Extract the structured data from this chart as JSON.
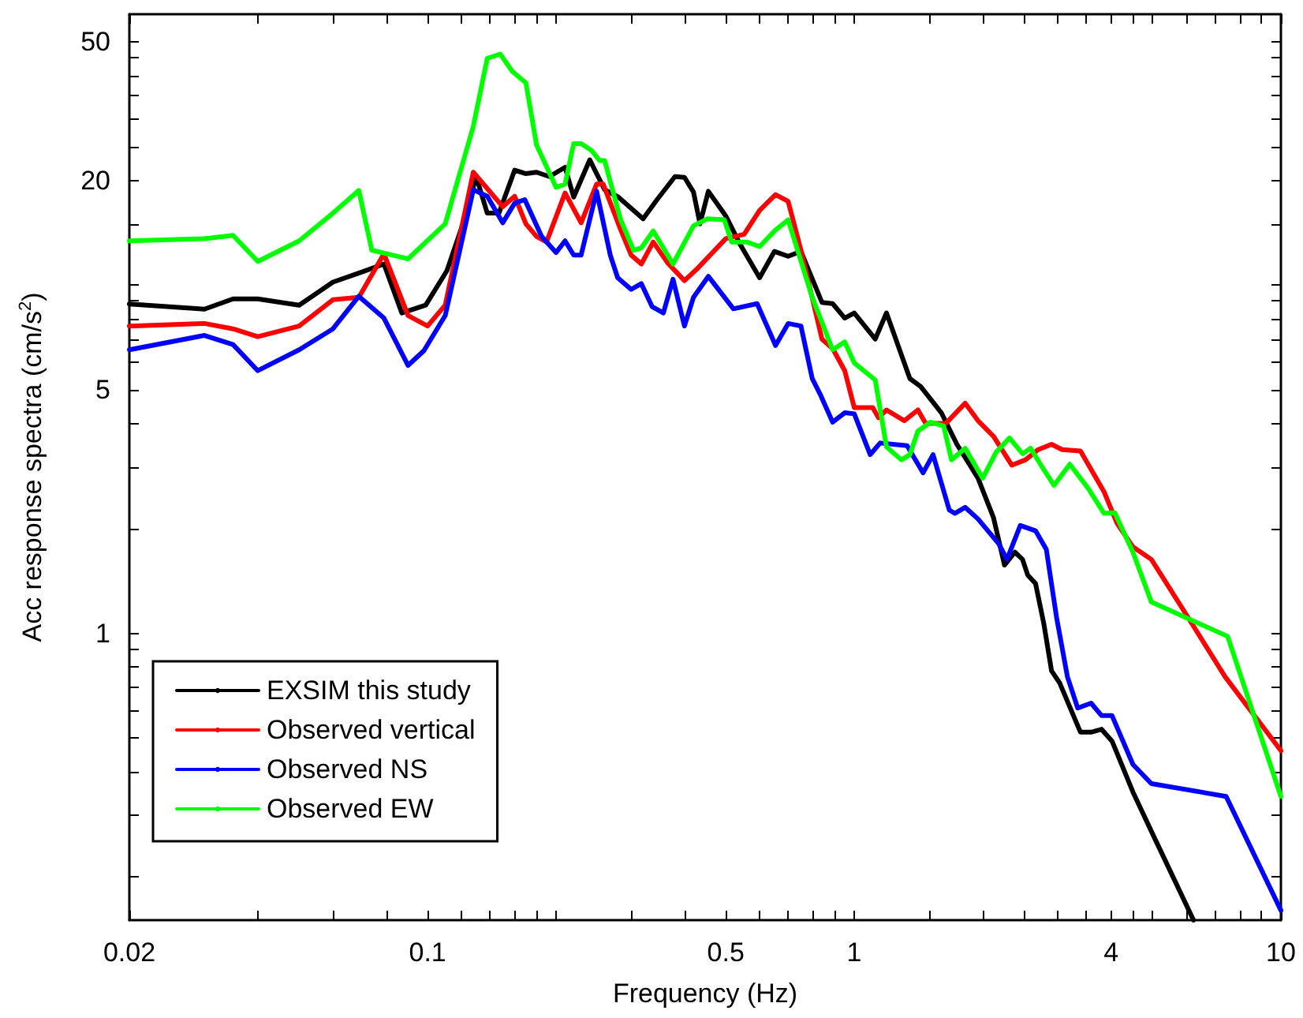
{
  "chart_data": {
    "type": "line",
    "xlabel": "Frequency (Hz)",
    "ylabel": "Acc response spectra (cm/s$^{2}$)",
    "log": "xy",
    "xlim": [
      0.02,
      10
    ],
    "ylim": [
      0.15,
      60
    ],
    "xticks": [
      0.02,
      {
        "value": 0.04,
        "label": null
      },
      {
        "value": 0.06,
        "label": null
      },
      {
        "value": 0.08,
        "label": null
      },
      0.1,
      {
        "value": 0.12,
        "label": null
      },
      {
        "value": 0.14,
        "label": null
      },
      {
        "value": 0.16,
        "label": null
      },
      {
        "value": 0.18,
        "label": null
      },
      {
        "value": 0.2,
        "label": null
      },
      {
        "value": 0.3,
        "label": null
      },
      {
        "value": 0.4,
        "label": null
      },
      0.5,
      {
        "value": 0.6,
        "label": null
      },
      {
        "value": 0.7,
        "label": null
      },
      {
        "value": 0.8,
        "label": null
      },
      {
        "value": 0.9,
        "label": null
      },
      1,
      {
        "value": 1.5,
        "label": null
      },
      {
        "value": 2,
        "label": null
      },
      {
        "value": 2.5,
        "label": null
      },
      {
        "value": 3,
        "label": null
      },
      {
        "value": 3.5,
        "label": null
      },
      4,
      {
        "value": 4.5,
        "label": null
      },
      {
        "value": 5,
        "label": null
      },
      {
        "value": 6,
        "label": null
      },
      {
        "value": 7,
        "label": null
      },
      {
        "value": 8,
        "label": null
      },
      {
        "value": 9,
        "label": null
      },
      10
    ],
    "yticks": [
      {
        "value": 0.2,
        "label": null
      },
      {
        "value": 0.3,
        "label": null
      },
      {
        "value": 0.4,
        "label": null
      },
      {
        "value": 0.5,
        "label": null
      },
      {
        "value": 0.6,
        "label": null
      },
      {
        "value": 0.7,
        "label": null
      },
      {
        "value": 0.8,
        "label": null
      },
      {
        "value": 0.9,
        "label": null
      },
      1,
      {
        "value": 2,
        "label": null
      },
      {
        "value": 3,
        "label": null
      },
      {
        "value": 4,
        "label": null
      },
      5,
      {
        "value": 6,
        "label": null
      },
      {
        "value": 7,
        "label": null
      },
      {
        "value": 8,
        "label": null
      },
      {
        "value": 9,
        "label": null
      },
      {
        "value": 10,
        "label": null
      },
      {
        "value": 15,
        "label": null
      },
      20,
      {
        "value": 25,
        "label": null
      },
      {
        "value": 30,
        "label": null
      },
      {
        "value": 35,
        "label": null
      },
      {
        "value": 40,
        "label": null
      },
      {
        "value": 45,
        "label": null
      },
      50
    ],
    "grid": false,
    "legend": "bottom left",
    "marker": "none",
    "line_style": "solid",
    "series": [
      {
        "name": "EXSIM this study",
        "color": "#000000",
        "x": [
          0.02,
          0.03,
          0.035,
          0.04,
          0.05,
          0.06,
          0.07,
          0.079,
          0.087,
          0.099,
          0.111,
          0.121,
          0.13,
          0.138,
          0.147,
          0.16,
          0.17,
          0.18,
          0.193,
          0.21,
          0.22,
          0.24,
          0.26,
          0.28,
          0.32,
          0.345,
          0.38,
          0.4,
          0.42,
          0.435,
          0.455,
          0.5,
          0.54,
          0.6,
          0.65,
          0.7,
          0.75,
          0.84,
          0.89,
          0.95,
          1.0,
          1.12,
          1.19,
          1.35,
          1.43,
          1.6,
          1.74,
          1.95,
          2.12,
          2.25,
          2.38,
          2.48,
          2.55,
          2.66,
          2.78,
          2.9,
          3.03,
          3.39,
          3.59,
          3.8,
          4.02,
          4.5,
          4.97,
          6.24
        ],
        "values": [
          8.83,
          8.53,
          9.13,
          9.13,
          8.76,
          10.2,
          10.9,
          11.5,
          8.32,
          8.76,
          11.0,
          15.0,
          20.5,
          16.1,
          16.1,
          21.4,
          20.9,
          21.1,
          20.5,
          21.8,
          17.9,
          22.9,
          18.8,
          17.9,
          15.5,
          17.6,
          20.5,
          20.4,
          18.5,
          15.0,
          18.6,
          15.8,
          13.1,
          10.5,
          12.5,
          12.1,
          12.5,
          8.92,
          8.85,
          8.04,
          8.32,
          7.0,
          8.32,
          5.39,
          5.12,
          4.3,
          3.49,
          2.79,
          2.15,
          1.57,
          1.71,
          1.63,
          1.47,
          1.39,
          1.07,
          0.78,
          0.72,
          0.52,
          0.52,
          0.53,
          0.49,
          0.35,
          0.27,
          0.15
        ]
      },
      {
        "name": "Observed vertical",
        "color": "#ff0000",
        "x": [
          0.02,
          0.03,
          0.035,
          0.04,
          0.05,
          0.06,
          0.069,
          0.079,
          0.09,
          0.1,
          0.11,
          0.128,
          0.15,
          0.16,
          0.17,
          0.18,
          0.19,
          0.21,
          0.229,
          0.249,
          0.258,
          0.283,
          0.3,
          0.317,
          0.338,
          0.365,
          0.4,
          0.427,
          0.5,
          0.552,
          0.6,
          0.654,
          0.7,
          0.75,
          0.84,
          0.89,
          0.95,
          1.0,
          1.105,
          1.14,
          1.19,
          1.31,
          1.41,
          1.47,
          1.64,
          1.82,
          1.95,
          2.12,
          2.34,
          2.52,
          2.7,
          2.9,
          3.07,
          3.39,
          3.85,
          4.13,
          4.5,
          4.97,
          6.06,
          7.4,
          10
        ],
        "values": [
          7.63,
          7.76,
          7.49,
          7.11,
          7.63,
          9.08,
          9.23,
          12.3,
          8.18,
          7.63,
          8.76,
          21.1,
          16.8,
          18.0,
          15.0,
          13.8,
          13.3,
          18.4,
          15.1,
          19.5,
          19.5,
          14.5,
          12.2,
          11.5,
          13.3,
          11.6,
          10.3,
          11.1,
          13.6,
          14.0,
          16.4,
          18.2,
          17.4,
          12.6,
          7.0,
          6.57,
          5.68,
          4.45,
          4.45,
          4.16,
          4.38,
          4.08,
          4.38,
          4.01,
          4.01,
          4.58,
          4.08,
          3.68,
          3.04,
          3.15,
          3.37,
          3.49,
          3.37,
          3.34,
          2.55,
          2.07,
          1.77,
          1.63,
          1.11,
          0.75,
          0.46
        ]
      },
      {
        "name": "Observed NS",
        "color": "#0000ff",
        "x": [
          0.02,
          0.03,
          0.035,
          0.04,
          0.05,
          0.06,
          0.069,
          0.079,
          0.09,
          0.098,
          0.11,
          0.128,
          0.138,
          0.15,
          0.16,
          0.169,
          0.185,
          0.2,
          0.21,
          0.22,
          0.229,
          0.249,
          0.268,
          0.279,
          0.3,
          0.317,
          0.336,
          0.357,
          0.376,
          0.4,
          0.42,
          0.455,
          0.521,
          0.592,
          0.654,
          0.7,
          0.75,
          0.797,
          0.832,
          0.89,
          0.95,
          1.0,
          1.09,
          1.15,
          1.33,
          1.45,
          1.53,
          1.67,
          1.72,
          1.82,
          1.95,
          2.18,
          2.28,
          2.45,
          2.66,
          2.82,
          2.98,
          3.16,
          3.34,
          3.59,
          3.8,
          4.02,
          4.5,
          4.97,
          7.44,
          10
        ],
        "values": [
          6.52,
          7.17,
          6.75,
          5.68,
          6.52,
          7.49,
          9.29,
          8.04,
          5.88,
          6.48,
          8.18,
          18.8,
          18.0,
          15.1,
          17.2,
          17.6,
          13.8,
          12.4,
          13.4,
          12.2,
          12.2,
          18.6,
          12.2,
          10.5,
          9.72,
          10.1,
          8.67,
          8.32,
          10.4,
          7.63,
          9.23,
          10.6,
          8.55,
          8.85,
          6.71,
          7.76,
          7.63,
          5.39,
          4.86,
          4.04,
          4.3,
          4.27,
          3.26,
          3.52,
          3.46,
          2.89,
          3.26,
          2.26,
          2.21,
          2.3,
          2.13,
          1.81,
          1.63,
          2.04,
          1.97,
          1.74,
          1.11,
          0.75,
          0.61,
          0.63,
          0.58,
          0.58,
          0.42,
          0.37,
          0.34,
          0.16
        ]
      },
      {
        "name": "Observed EW",
        "color": "#00ff00",
        "x": [
          0.02,
          0.03,
          0.035,
          0.04,
          0.05,
          0.06,
          0.069,
          0.074,
          0.09,
          0.11,
          0.128,
          0.138,
          0.148,
          0.158,
          0.17,
          0.18,
          0.2,
          0.21,
          0.22,
          0.229,
          0.242,
          0.253,
          0.26,
          0.283,
          0.304,
          0.317,
          0.338,
          0.376,
          0.42,
          0.452,
          0.496,
          0.516,
          0.56,
          0.6,
          0.654,
          0.7,
          0.797,
          0.89,
          0.95,
          1.0,
          1.12,
          1.19,
          1.29,
          1.35,
          1.41,
          1.51,
          1.62,
          1.69,
          1.82,
          2.0,
          2.15,
          2.31,
          2.48,
          2.59,
          2.74,
          2.94,
          3.2,
          3.54,
          3.85,
          4.08,
          4.5,
          4.97,
          7.5,
          10
        ],
        "values": [
          13.4,
          13.6,
          13.9,
          11.7,
          13.4,
          16.1,
          18.7,
          12.6,
          11.9,
          15.0,
          28.6,
          44.8,
          46.1,
          41.1,
          38.1,
          25.3,
          19.1,
          19.5,
          25.5,
          25.5,
          24.4,
          22.8,
          22.8,
          15.5,
          12.6,
          12.8,
          14.3,
          11.5,
          14.8,
          15.5,
          15.4,
          13.3,
          13.3,
          12.9,
          14.4,
          15.4,
          9.23,
          6.52,
          6.87,
          5.98,
          5.34,
          3.43,
          3.15,
          3.26,
          3.81,
          4.04,
          3.94,
          3.15,
          3.4,
          2.79,
          3.31,
          3.64,
          3.28,
          3.4,
          3.04,
          2.66,
          3.06,
          2.6,
          2.21,
          2.22,
          1.71,
          1.23,
          0.98,
          0.34
        ]
      }
    ]
  }
}
